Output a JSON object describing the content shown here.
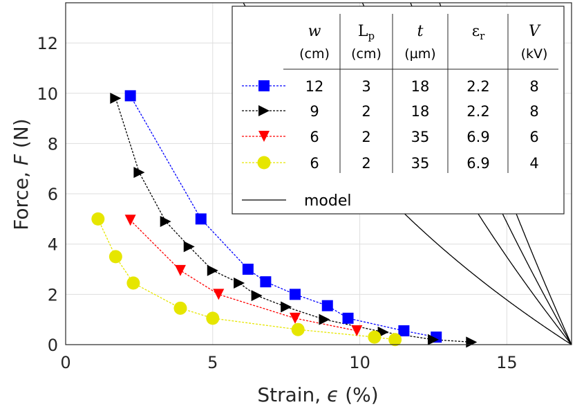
{
  "chart_data": {
    "type": "scatter",
    "xlabel": "Strain, ϵ (%)",
    "xlabel_prefix": "Strain, ",
    "xlabel_var": "ϵ",
    "xlabel_suffix": " (%)",
    "ylabel": "Force, F (N)",
    "ylabel_prefix": "Force, ",
    "ylabel_var": "F",
    "ylabel_suffix": " (N)",
    "xlim": [
      0,
      17.2
    ],
    "ylim": [
      0,
      13.6
    ],
    "xticks": [
      0,
      5,
      10,
      15
    ],
    "yticks": [
      0,
      2,
      4,
      6,
      8,
      10,
      12
    ],
    "grid": true,
    "legend_position": "top-right",
    "legend_columns": [
      {
        "head": "w",
        "unit": "(cm)"
      },
      {
        "head": "Lp",
        "head_main": "L",
        "head_sub": "p",
        "unit": "(cm)"
      },
      {
        "head": "t",
        "unit": "(µm)"
      },
      {
        "head": "εr",
        "head_main": "ε",
        "head_sub": "r",
        "unit": ""
      },
      {
        "head": "V",
        "unit": "(kV)"
      }
    ],
    "series": [
      {
        "marker": "square",
        "color": "#0000ff",
        "params": [
          "12",
          "3",
          "18",
          "2.2",
          "8"
        ],
        "x": [
          2.2,
          4.6,
          6.2,
          6.8,
          7.8,
          8.9,
          9.6,
          11.5,
          12.6
        ],
        "y": [
          9.9,
          5.0,
          3.0,
          2.5,
          2.0,
          1.55,
          1.05,
          0.55,
          0.3
        ]
      },
      {
        "marker": "triangle-right",
        "color": "#000000",
        "params": [
          "9",
          "2",
          "18",
          "2.2",
          "8"
        ],
        "x": [
          1.7,
          2.5,
          3.4,
          4.2,
          5.0,
          5.9,
          6.5,
          7.5,
          8.8,
          10.8,
          12.5,
          13.8
        ],
        "y": [
          9.8,
          6.85,
          4.9,
          3.9,
          2.95,
          2.45,
          1.95,
          1.5,
          1.0,
          0.5,
          0.2,
          0.1
        ]
      },
      {
        "marker": "triangle-down",
        "color": "#ff0000",
        "params": [
          "6",
          "2",
          "35",
          "6.9",
          "6"
        ],
        "x": [
          2.2,
          3.9,
          5.2,
          7.8,
          9.9
        ],
        "y": [
          4.95,
          2.95,
          2.0,
          1.05,
          0.55
        ]
      },
      {
        "marker": "circle",
        "color": "#e6e600",
        "params": [
          "6",
          "2",
          "35",
          "6.9",
          "4"
        ],
        "x": [
          1.1,
          1.7,
          2.3,
          3.9,
          5.0,
          7.9,
          10.5,
          11.2
        ],
        "y": [
          5.0,
          3.5,
          2.45,
          1.45,
          1.05,
          0.6,
          0.3,
          0.2
        ]
      }
    ],
    "model": {
      "label": "model",
      "color": "#000000",
      "x_end": 17.2,
      "curves": [
        {
          "A": 13.0
        },
        {
          "A": 25.5
        },
        {
          "A": 35.5
        },
        {
          "A": 45.0
        }
      ]
    }
  }
}
